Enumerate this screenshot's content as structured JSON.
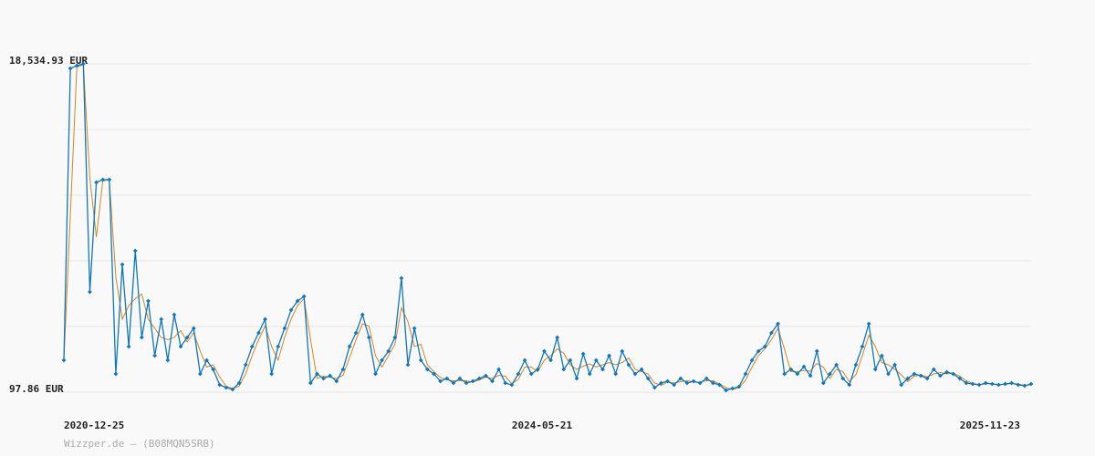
{
  "chart_data": {
    "type": "line",
    "source": "Wizzper.de – (B08MQN5SRB)",
    "categories": [
      "2020-12-25",
      null,
      null,
      null,
      null,
      null,
      null,
      null,
      null,
      null,
      null,
      null,
      null,
      null,
      null,
      null,
      null,
      null,
      null,
      null,
      null,
      null,
      null,
      null,
      null,
      null,
      null,
      null,
      null,
      null,
      null,
      null,
      null,
      null,
      null,
      null,
      null,
      null,
      null,
      null,
      null,
      null,
      null,
      null,
      null,
      null,
      null,
      null,
      null,
      null,
      null,
      null,
      null,
      null,
      null,
      null,
      null,
      null,
      null,
      null,
      null,
      null,
      null,
      null,
      null,
      null,
      null,
      null,
      null,
      "2024-05-21",
      null,
      null,
      null,
      null,
      null,
      null,
      null,
      null,
      null,
      null,
      null,
      null,
      null,
      null,
      null,
      null,
      null,
      null,
      null,
      null,
      null,
      null,
      null,
      null,
      null,
      null,
      null,
      null,
      null,
      null,
      null,
      null,
      null,
      null,
      null,
      null,
      null,
      null,
      null,
      null,
      null,
      null,
      null,
      null,
      null,
      null,
      null,
      null,
      null,
      null,
      null,
      null,
      null,
      null,
      null,
      null,
      null,
      null,
      null,
      null,
      null,
      null,
      null,
      null,
      null,
      null,
      null,
      null,
      "2025-11-23",
      null,
      null,
      null,
      null,
      null,
      null,
      null,
      null,
      null,
      null,
      null
    ],
    "series": [
      {
        "color": "#1177bb",
        "markers": true,
        "values": [
          1890,
          18279,
          18433,
          18535,
          5731,
          11877,
          12031,
          12031,
          1122,
          7268,
          2659,
          8036,
          3171,
          5219,
          2147,
          4195,
          1890,
          4451,
          2659,
          3171,
          3683,
          1122,
          1890,
          1378,
          508,
          354,
          252,
          610,
          1634,
          2659,
          3427,
          4195,
          1122,
          2659,
          3683,
          4707,
          5219,
          5475,
          610,
          1122,
          866,
          1020,
          713,
          1378,
          2659,
          3427,
          4451,
          3171,
          1122,
          1890,
          2403,
          3171,
          6500,
          1634,
          3683,
          1890,
          1378,
          1122,
          713,
          866,
          610,
          866,
          610,
          713,
          866,
          1020,
          713,
          1378,
          610,
          508,
          1122,
          1890,
          1122,
          1378,
          2403,
          1890,
          3171,
          1378,
          1890,
          866,
          2249,
          1122,
          1890,
          1378,
          2147,
          1122,
          2403,
          1634,
          1122,
          1378,
          866,
          354,
          610,
          713,
          508,
          866,
          610,
          713,
          610,
          866,
          610,
          508,
          200,
          303,
          405,
          1122,
          1890,
          2403,
          2659,
          3427,
          3939,
          1122,
          1378,
          1122,
          1532,
          1020,
          2403,
          610,
          1122,
          1634,
          866,
          508,
          1634,
          2659,
          3939,
          1378,
          2147,
          1122,
          1634,
          508,
          866,
          1122,
          1020,
          866,
          1378,
          1020,
          1225,
          1122,
          866,
          610,
          559,
          508,
          610,
          559,
          508,
          559,
          610,
          508,
          456,
          559
        ]
      },
      {
        "color": "#d4871f",
        "markers": false,
        "values": [
          1890,
          10085,
          18356,
          18484,
          12133,
          8804,
          11954,
          12031,
          6577,
          4195,
          4964,
          5348,
          5604,
          4195,
          3683,
          3171,
          3043,
          3171,
          3555,
          2915,
          3427,
          2403,
          1506,
          1634,
          943,
          431,
          303,
          431,
          1122,
          2147,
          3043,
          3811,
          2659,
          1890,
          3171,
          4195,
          4963,
          5347,
          3043,
          866,
          994,
          943,
          867,
          1046,
          2019,
          3043,
          3939,
          3811,
          2147,
          1506,
          2147,
          2787,
          4836,
          4067,
          2659,
          2787,
          1634,
          1250,
          918,
          790,
          738,
          738,
          738,
          662,
          790,
          943,
          867,
          1046,
          994,
          559,
          815,
          1506,
          1506,
          1250,
          1891,
          2147,
          2531,
          2275,
          1634,
          1378,
          1558,
          1686,
          1506,
          1634,
          1763,
          1635,
          1763,
          2019,
          1378,
          1250,
          1122,
          610,
          482,
          662,
          611,
          687,
          738,
          662,
          662,
          738,
          738,
          559,
          354,
          252,
          354,
          764,
          1506,
          2147,
          2531,
          3043,
          3683,
          2531,
          1250,
          1250,
          1327,
          1276,
          1712,
          1507,
          866,
          1378,
          1250,
          687,
          1071,
          2147,
          3299,
          2659,
          1763,
          1635,
          1378,
          1071,
          687,
          994,
          1071,
          943,
          1122,
          1199,
          1123,
          1174,
          994,
          738,
          585,
          534,
          559,
          585,
          534,
          534,
          585,
          559,
          482,
          508
        ]
      }
    ],
    "ylim": [
      97.86,
      18534.93
    ],
    "yticks": [
      {
        "value": 18534.93,
        "label": "18,534.93 EUR"
      },
      {
        "value": 97.86,
        "label": "97.86 EUR"
      }
    ],
    "ygrid": [
      3785.27,
      7472.69,
      11160.1,
      14847.52
    ],
    "grid": true
  }
}
